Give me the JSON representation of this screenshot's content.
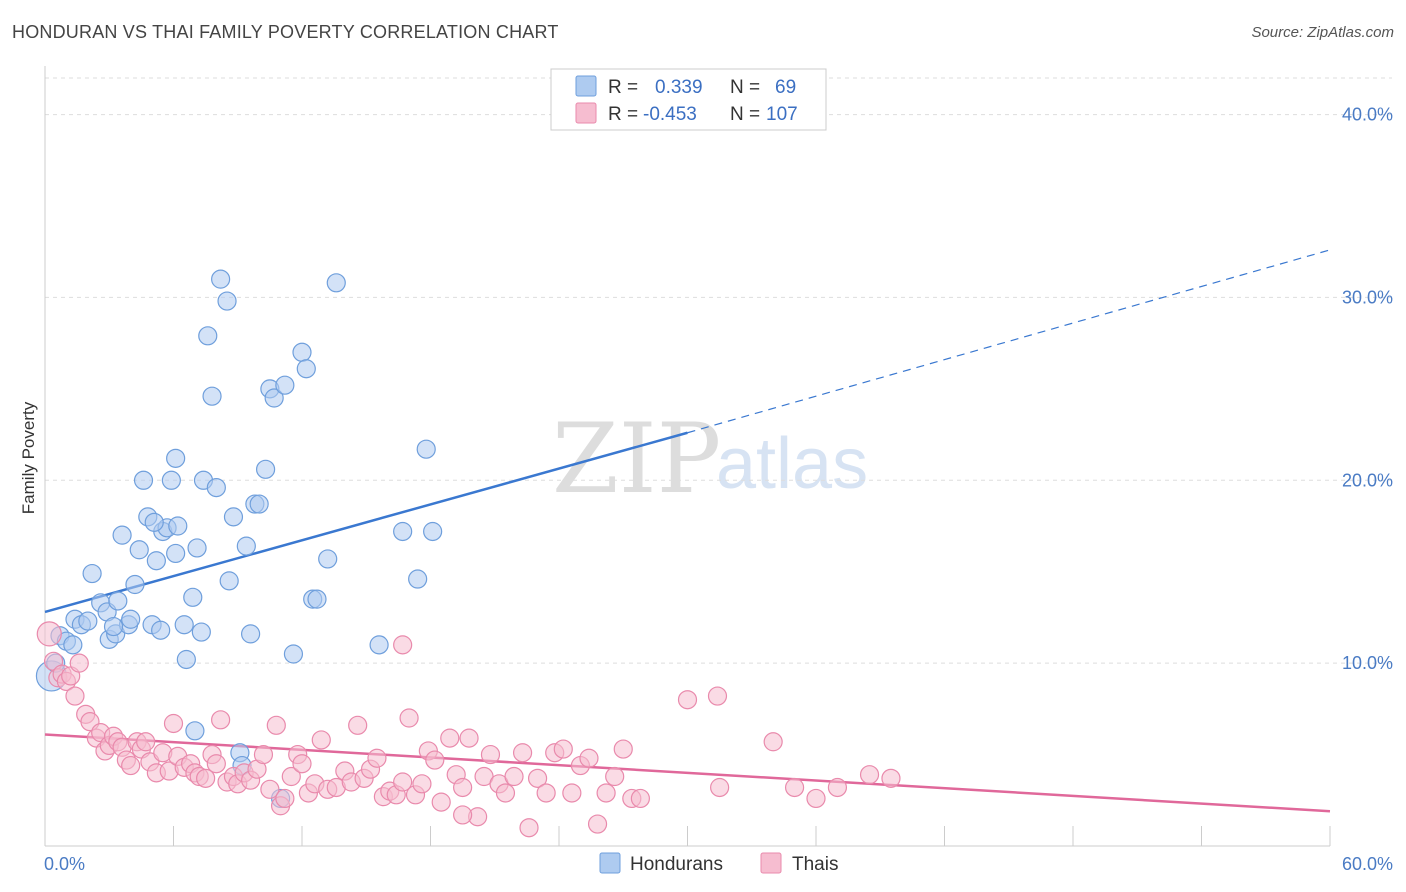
{
  "title": "HONDURAN VS THAI FAMILY POVERTY CORRELATION CHART",
  "source": "Source: ZipAtlas.com",
  "watermark": {
    "zip": "ZIP",
    "atlas": "atlas"
  },
  "colors": {
    "honduran_fill": "#aecbf0",
    "honduran_stroke": "#6f9fdc",
    "honduran_line": "#3a78d0",
    "thai_fill": "#f6bdd0",
    "thai_stroke": "#e98aac",
    "thai_line": "#e0689a",
    "grid": "#dddddd",
    "tick_label": "#4a7bc4"
  },
  "legend": {
    "rows": [
      {
        "r_label": "R = ",
        "r_value": "0.339",
        "n_label": "N = ",
        "n_value": "69"
      },
      {
        "r_label": "R = ",
        "r_value": "-0.453",
        "n_label": "N = ",
        "n_value": "107"
      }
    ]
  },
  "bottom_legend": [
    "Hondurans",
    "Thais"
  ],
  "chart_data": {
    "type": "scatter",
    "ylabel": "Family Poverty",
    "xlabel": "",
    "xlim": [
      0,
      60
    ],
    "ylim": [
      0,
      42
    ],
    "x_tick_labels": [
      "0.0%",
      "60.0%"
    ],
    "y_ticks": [
      10,
      20,
      30,
      40
    ],
    "y_tick_labels": [
      "10.0%",
      "20.0%",
      "30.0%",
      "40.0%"
    ],
    "grid": true,
    "legend_position": "top-center",
    "series": [
      {
        "name": "Hondurans",
        "points": [
          [
            0.3,
            9.3
          ],
          [
            0.5,
            10.0
          ],
          [
            0.7,
            11.5
          ],
          [
            1.0,
            11.2
          ],
          [
            1.3,
            11.0
          ],
          [
            1.4,
            12.4
          ],
          [
            1.7,
            12.1
          ],
          [
            2.0,
            12.3
          ],
          [
            2.2,
            14.9
          ],
          [
            2.6,
            13.3
          ],
          [
            2.9,
            12.8
          ],
          [
            3.0,
            11.3
          ],
          [
            3.3,
            11.6
          ],
          [
            3.4,
            13.4
          ],
          [
            3.6,
            17.0
          ],
          [
            3.9,
            12.1
          ],
          [
            4.0,
            12.4
          ],
          [
            4.2,
            14.3
          ],
          [
            4.4,
            16.2
          ],
          [
            4.6,
            20.0
          ],
          [
            4.8,
            18.0
          ],
          [
            5.0,
            12.1
          ],
          [
            5.2,
            15.6
          ],
          [
            5.4,
            11.8
          ],
          [
            5.5,
            17.2
          ],
          [
            5.7,
            17.4
          ],
          [
            5.9,
            20.0
          ],
          [
            6.1,
            21.2
          ],
          [
            6.2,
            17.5
          ],
          [
            6.5,
            12.1
          ],
          [
            6.6,
            10.2
          ],
          [
            6.9,
            13.6
          ],
          [
            7.1,
            16.3
          ],
          [
            7.3,
            11.7
          ],
          [
            7.4,
            20.0
          ],
          [
            7.6,
            27.9
          ],
          [
            7.8,
            24.6
          ],
          [
            8.0,
            19.6
          ],
          [
            8.2,
            31.0
          ],
          [
            8.5,
            29.8
          ],
          [
            8.6,
            14.5
          ],
          [
            8.8,
            18.0
          ],
          [
            9.1,
            5.1
          ],
          [
            9.2,
            4.4
          ],
          [
            9.4,
            16.4
          ],
          [
            9.6,
            11.6
          ],
          [
            9.8,
            18.7
          ],
          [
            10.0,
            18.7
          ],
          [
            10.3,
            20.6
          ],
          [
            10.5,
            25.0
          ],
          [
            10.7,
            24.5
          ],
          [
            11.2,
            25.2
          ],
          [
            11.6,
            10.5
          ],
          [
            12.0,
            27.0
          ],
          [
            12.2,
            26.1
          ],
          [
            12.5,
            13.5
          ],
          [
            12.7,
            13.5
          ],
          [
            13.2,
            15.7
          ],
          [
            13.6,
            30.8
          ],
          [
            15.6,
            11.0
          ],
          [
            16.7,
            17.2
          ],
          [
            17.4,
            14.6
          ],
          [
            18.1,
            17.2
          ],
          [
            17.8,
            21.7
          ],
          [
            7.0,
            6.3
          ],
          [
            6.1,
            16.0
          ],
          [
            5.1,
            17.7
          ],
          [
            11.0,
            2.6
          ],
          [
            3.2,
            12.0
          ]
        ],
        "trend": {
          "x": [
            0,
            30
          ],
          "y": [
            12.8,
            22.6
          ],
          "dashed_extension": {
            "x": [
              30,
              60
            ],
            "y": [
              22.6,
              32.6
            ]
          }
        }
      },
      {
        "name": "Thais",
        "points": [
          [
            0.2,
            11.6
          ],
          [
            0.4,
            10.1
          ],
          [
            0.6,
            9.2
          ],
          [
            0.8,
            9.4
          ],
          [
            1.0,
            9.0
          ],
          [
            1.2,
            9.3
          ],
          [
            1.4,
            8.2
          ],
          [
            1.6,
            10.0
          ],
          [
            1.9,
            7.2
          ],
          [
            2.1,
            6.8
          ],
          [
            2.4,
            5.9
          ],
          [
            2.6,
            6.2
          ],
          [
            2.8,
            5.2
          ],
          [
            3.0,
            5.5
          ],
          [
            3.2,
            6.0
          ],
          [
            3.4,
            5.7
          ],
          [
            3.6,
            5.4
          ],
          [
            3.8,
            4.7
          ],
          [
            4.0,
            4.4
          ],
          [
            4.3,
            5.7
          ],
          [
            4.5,
            5.3
          ],
          [
            4.7,
            5.7
          ],
          [
            4.9,
            4.6
          ],
          [
            5.2,
            4.0
          ],
          [
            5.5,
            5.1
          ],
          [
            5.8,
            4.1
          ],
          [
            6.0,
            6.7
          ],
          [
            6.2,
            4.9
          ],
          [
            6.5,
            4.3
          ],
          [
            6.8,
            4.5
          ],
          [
            7.0,
            4.0
          ],
          [
            7.2,
            3.8
          ],
          [
            7.5,
            3.7
          ],
          [
            7.8,
            5.0
          ],
          [
            8.0,
            4.5
          ],
          [
            8.2,
            6.9
          ],
          [
            8.5,
            3.5
          ],
          [
            8.8,
            3.8
          ],
          [
            9.0,
            3.4
          ],
          [
            9.3,
            4.0
          ],
          [
            9.6,
            3.6
          ],
          [
            9.9,
            4.2
          ],
          [
            10.2,
            5.0
          ],
          [
            10.5,
            3.1
          ],
          [
            10.8,
            6.6
          ],
          [
            11.0,
            2.2
          ],
          [
            11.2,
            2.6
          ],
          [
            11.5,
            3.8
          ],
          [
            11.8,
            5.0
          ],
          [
            12.0,
            4.5
          ],
          [
            12.3,
            2.9
          ],
          [
            12.6,
            3.4
          ],
          [
            12.9,
            5.8
          ],
          [
            13.2,
            3.1
          ],
          [
            13.6,
            3.2
          ],
          [
            14.0,
            4.1
          ],
          [
            14.3,
            3.5
          ],
          [
            14.6,
            6.6
          ],
          [
            14.9,
            3.7
          ],
          [
            15.2,
            4.2
          ],
          [
            15.5,
            4.8
          ],
          [
            15.8,
            2.7
          ],
          [
            16.1,
            3.0
          ],
          [
            16.4,
            2.8
          ],
          [
            16.7,
            3.5
          ],
          [
            17.0,
            7.0
          ],
          [
            17.3,
            2.8
          ],
          [
            17.6,
            3.4
          ],
          [
            17.9,
            5.2
          ],
          [
            18.2,
            4.7
          ],
          [
            18.5,
            2.4
          ],
          [
            18.9,
            5.9
          ],
          [
            19.2,
            3.9
          ],
          [
            19.5,
            3.2
          ],
          [
            19.8,
            5.9
          ],
          [
            20.2,
            1.6
          ],
          [
            20.5,
            3.8
          ],
          [
            20.8,
            5.0
          ],
          [
            21.2,
            3.4
          ],
          [
            21.5,
            2.9
          ],
          [
            21.9,
            3.8
          ],
          [
            22.3,
            5.1
          ],
          [
            22.6,
            1.0
          ],
          [
            23.0,
            3.7
          ],
          [
            23.4,
            2.9
          ],
          [
            23.8,
            5.1
          ],
          [
            24.2,
            5.3
          ],
          [
            24.6,
            2.9
          ],
          [
            25.0,
            4.4
          ],
          [
            25.4,
            4.8
          ],
          [
            25.8,
            1.2
          ],
          [
            26.2,
            2.9
          ],
          [
            26.6,
            3.8
          ],
          [
            27.0,
            5.3
          ],
          [
            27.4,
            2.6
          ],
          [
            27.8,
            2.6
          ],
          [
            30.0,
            8.0
          ],
          [
            31.4,
            8.2
          ],
          [
            34.0,
            5.7
          ],
          [
            35.0,
            3.2
          ],
          [
            36.0,
            2.6
          ],
          [
            37.0,
            3.2
          ],
          [
            38.5,
            3.9
          ],
          [
            39.5,
            3.7
          ],
          [
            16.7,
            11.0
          ],
          [
            19.5,
            1.7
          ],
          [
            31.5,
            3.2
          ]
        ],
        "trend": {
          "x": [
            0,
            60
          ],
          "y": [
            6.1,
            1.9
          ]
        }
      }
    ]
  }
}
